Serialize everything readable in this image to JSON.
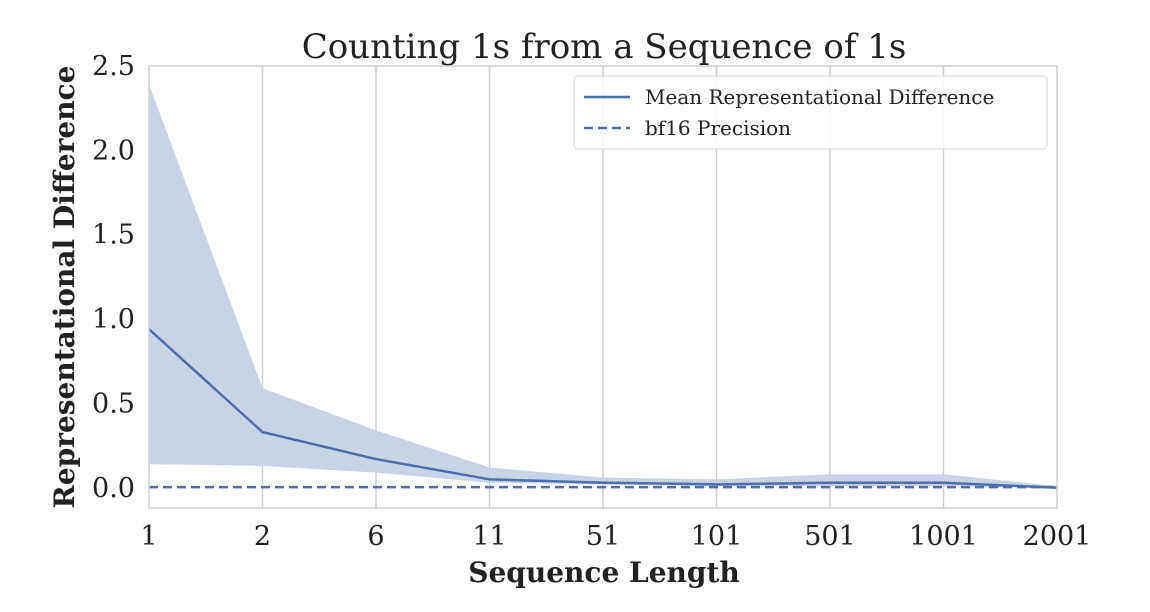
{
  "chart_data": {
    "type": "line",
    "title": "Counting 1s from a Sequence of 1s",
    "xlabel": "Sequence Length",
    "ylabel": "Representational Difference",
    "categories": [
      "1",
      "2",
      "6",
      "11",
      "51",
      "101",
      "501",
      "1001",
      "2001"
    ],
    "ylim": [
      -0.12,
      2.5
    ],
    "yticks": [
      "0.0",
      "0.5",
      "1.0",
      "1.5",
      "2.0",
      "2.5"
    ],
    "ytick_values": [
      0,
      0.5,
      1.0,
      1.5,
      2.0,
      2.5
    ],
    "grid": "vertical",
    "legend_position": "top-right",
    "series": [
      {
        "name": "Mean Representational Difference",
        "style": "solid",
        "color": "#4c6fab",
        "values": [
          0.94,
          0.33,
          0.17,
          0.05,
          0.03,
          0.02,
          0.03,
          0.03,
          0.0
        ],
        "band_lower": [
          0.14,
          0.13,
          0.09,
          0.03,
          0.02,
          0.01,
          0.01,
          0.01,
          0.0
        ],
        "band_upper": [
          2.39,
          0.59,
          0.34,
          0.12,
          0.06,
          0.05,
          0.08,
          0.08,
          0.01
        ],
        "band_color": "#c9d3e6"
      },
      {
        "name": "bf16 Precision",
        "style": "dashed",
        "color": "#4c6fab",
        "values": [
          0.004,
          0.004,
          0.004,
          0.004,
          0.004,
          0.004,
          0.004,
          0.004,
          0.004
        ]
      }
    ]
  }
}
